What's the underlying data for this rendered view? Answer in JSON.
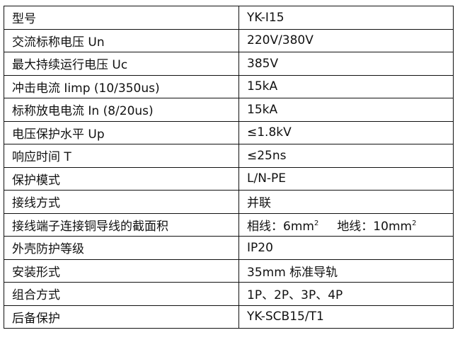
{
  "rows": [
    {
      "label": "型号",
      "value": "YK-I15"
    },
    {
      "label": "交流标称电压 Un",
      "value": "220V/380V"
    },
    {
      "label": "最大持续运行电压 Uc",
      "value": "385V"
    },
    {
      "label": "冲击电流 Iimp (10/350us)",
      "value": "15kA"
    },
    {
      "label": "标称放电电流 In (8/20us)",
      "value": "15kA"
    },
    {
      "label": "电压保护水平 Up",
      "value": "≤1.8kV"
    },
    {
      "label": "响应时间 T",
      "value": "≤25ns"
    },
    {
      "label": "保护模式",
      "value": "L/N-PE"
    },
    {
      "label": "接线方式",
      "value": "并联"
    },
    {
      "label": "接线端子连接铜导线的截面积",
      "value_phase": "相线：6mm",
      "value_phase_sup": "2",
      "value_ground": "地线：10mm",
      "value_ground_sup": "2"
    },
    {
      "label": "外壳防护等级",
      "value": "IP20"
    },
    {
      "label": "安装形式",
      "value": "35mm 标准导轨"
    },
    {
      "label": "组合方式",
      "value": "1P、2P、3P、4P"
    },
    {
      "label": "后备保护",
      "value": "YK-SCB15/T1"
    }
  ]
}
